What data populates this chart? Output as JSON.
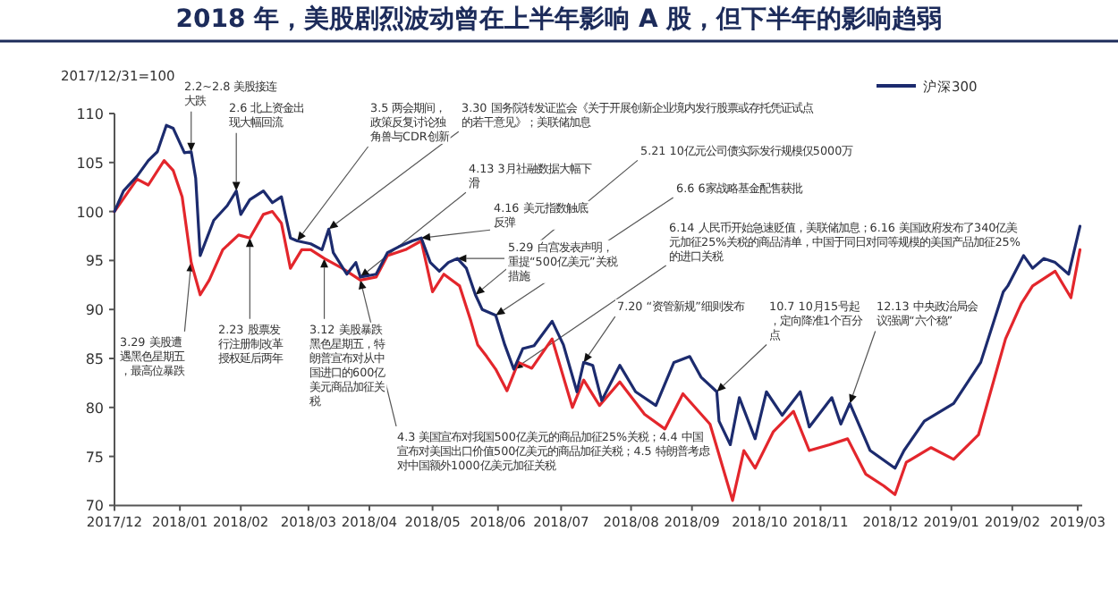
{
  "chart_data": {
    "type": "line",
    "title": "2018 年，美股剧烈波动曾在上半年影响 A 股，但下半年的影响趋弱",
    "ylabel": "2017/12/31=100",
    "xlim": [
      "2017-12-29",
      "2019-03-03"
    ],
    "xticks": [
      {
        "value": "2017-12-29",
        "label": "2017/12"
      },
      {
        "value": "2018-01-27",
        "label": "2018/01"
      },
      {
        "value": "2018-02-23",
        "label": "2018/02"
      },
      {
        "value": "2018-03-25",
        "label": "2018/03"
      },
      {
        "value": "2018-04-21",
        "label": "2018/04"
      },
      {
        "value": "2018-05-19",
        "label": "2018/05"
      },
      {
        "value": "2018-06-17",
        "label": "2018/06"
      },
      {
        "value": "2018-07-15",
        "label": "2018/07"
      },
      {
        "value": "2018-08-15",
        "label": "2018/08"
      },
      {
        "value": "2018-09-11",
        "label": "2018/09"
      },
      {
        "value": "2018-10-11",
        "label": "2018/10"
      },
      {
        "value": "2018-11-07",
        "label": "2018/11"
      },
      {
        "value": "2018-12-08",
        "label": "2018/12"
      },
      {
        "value": "2019-01-04",
        "label": "2019/01"
      },
      {
        "value": "2019-01-31",
        "label": "2019/02"
      },
      {
        "value": "2019-03-01",
        "label": "2019/03"
      }
    ],
    "ylim": [
      70,
      110
    ],
    "yticks": [
      70,
      75,
      80,
      85,
      90,
      95,
      100,
      105,
      110
    ],
    "grid": false,
    "legend": "top right",
    "line_style": "solid",
    "series": [
      {
        "color": "#e3262c",
        "x": [
          "2017-12-29",
          "2018-01-08",
          "2018-01-13",
          "2018-01-20",
          "2018-01-24",
          "2018-01-28",
          "2018-02-01",
          "2018-02-05",
          "2018-02-09",
          "2018-02-15",
          "2018-02-22",
          "2018-02-27",
          "2018-03-05",
          "2018-03-09",
          "2018-03-13",
          "2018-03-17",
          "2018-03-22",
          "2018-03-26",
          "2018-04-01",
          "2018-04-09",
          "2018-04-17",
          "2018-04-24",
          "2018-04-29",
          "2018-05-07",
          "2018-05-14",
          "2018-05-19",
          "2018-05-24",
          "2018-05-31",
          "2018-06-05",
          "2018-06-08",
          "2018-06-12",
          "2018-06-16",
          "2018-06-21",
          "2018-06-26",
          "2018-07-02",
          "2018-07-11",
          "2018-07-20",
          "2018-07-25",
          "2018-08-01",
          "2018-08-10",
          "2018-08-21",
          "2018-08-30",
          "2018-09-07",
          "2018-09-19",
          "2018-09-24",
          "2018-09-29",
          "2018-10-04",
          "2018-10-09",
          "2018-10-17",
          "2018-10-26",
          "2018-11-02",
          "2018-11-11",
          "2018-11-19",
          "2018-11-27",
          "2018-12-05",
          "2018-12-10",
          "2018-12-15",
          "2018-12-26",
          "2019-01-05",
          "2019-01-16",
          "2019-01-28",
          "2019-02-04",
          "2019-02-09",
          "2019-02-19",
          "2019-02-26",
          "2019-03-02"
        ],
        "values": [
          100,
          103.3,
          102.7,
          105.2,
          104.2,
          101.5,
          94.8,
          91.5,
          93,
          96.1,
          97.6,
          97.3,
          99.7,
          100,
          98.8,
          94.2,
          96.1,
          96.1,
          95.2,
          94.2,
          93,
          93.3,
          95.5,
          96.1,
          97,
          91.8,
          93.6,
          92.4,
          88.8,
          86.4,
          85.2,
          83.9,
          81.7,
          84.6,
          84,
          87,
          80,
          82.8,
          80.2,
          82.6,
          79.3,
          77.8,
          81.4,
          78.3,
          74.4,
          70.5,
          75.6,
          73.8,
          77.5,
          79.6,
          75.6,
          76.2,
          76.8,
          73.2,
          72,
          71.1,
          74.4,
          75.9,
          74.7,
          77.2,
          87,
          90.6,
          92.4,
          93.9,
          91.2,
          96.1
        ]
      },
      {
        "name": "沪深300",
        "color": "#1c2b6e",
        "x": [
          "2017-12-29",
          "2018-01-02",
          "2018-01-08",
          "2018-01-13",
          "2018-01-17",
          "2018-01-21",
          "2018-01-24",
          "2018-01-27",
          "2018-01-29",
          "2018-02-01",
          "2018-02-03",
          "2018-02-05",
          "2018-02-07",
          "2018-02-11",
          "2018-02-17",
          "2018-02-21",
          "2018-02-23",
          "2018-02-27",
          "2018-03-05",
          "2018-03-09",
          "2018-03-13",
          "2018-03-17",
          "2018-03-20",
          "2018-03-26",
          "2018-03-31",
          "2018-04-03",
          "2018-04-05",
          "2018-04-11",
          "2018-04-15",
          "2018-04-17",
          "2018-04-24",
          "2018-04-29",
          "2018-05-04",
          "2018-05-10",
          "2018-05-14",
          "2018-05-18",
          "2018-05-22",
          "2018-05-26",
          "2018-05-30",
          "2018-06-03",
          "2018-06-07",
          "2018-06-10",
          "2018-06-16",
          "2018-06-20",
          "2018-06-24",
          "2018-06-28",
          "2018-07-03",
          "2018-07-11",
          "2018-07-16",
          "2018-07-22",
          "2018-07-25",
          "2018-07-29",
          "2018-08-02",
          "2018-08-10",
          "2018-08-17",
          "2018-08-26",
          "2018-09-03",
          "2018-09-10",
          "2018-09-15",
          "2018-09-22",
          "2018-09-23",
          "2018-09-28",
          "2018-10-02",
          "2018-10-09",
          "2018-10-14",
          "2018-10-21",
          "2018-10-29",
          "2018-11-02",
          "2018-11-12",
          "2018-11-16",
          "2018-11-20",
          "2018-11-29",
          "2018-12-10",
          "2018-12-14",
          "2018-12-23",
          "2019-01-05",
          "2019-01-17",
          "2019-01-27",
          "2019-01-29",
          "2019-02-05",
          "2019-02-09",
          "2019-02-14",
          "2019-02-19",
          "2019-02-25",
          "2019-03-02"
        ],
        "values": [
          100,
          102.1,
          103.6,
          105.2,
          106.1,
          108.8,
          108.5,
          107,
          106,
          106.1,
          103.4,
          95.5,
          96.7,
          99.1,
          100.6,
          102.1,
          99.7,
          101.2,
          102.1,
          100.9,
          101.5,
          97.3,
          97,
          96.7,
          96.1,
          98.2,
          95.8,
          93.6,
          94.8,
          93.3,
          93.6,
          95.8,
          96.4,
          97,
          97.3,
          94.8,
          93.9,
          94.8,
          95.2,
          94.2,
          91.5,
          90,
          89.4,
          86.4,
          83.9,
          86,
          86.3,
          88.8,
          86.4,
          81.6,
          84.6,
          84.3,
          80.7,
          84.3,
          81.6,
          80.2,
          84.6,
          85.2,
          83.1,
          81.6,
          78.6,
          76.2,
          81,
          76.8,
          81.6,
          79.2,
          81.6,
          78,
          81,
          78.3,
          80.4,
          75.6,
          73.8,
          75.6,
          78.6,
          80.4,
          84.6,
          91.8,
          92.4,
          95.5,
          94.2,
          95.2,
          94.8,
          93.6,
          98.5
        ]
      }
    ],
    "annotations": [
      {
        "text": "2.2~2.8 美股接连大跌",
        "x": "2018-02-01",
        "y": 106.1
      },
      {
        "text": "2.6 北上资金出现大幅回流",
        "x": "2018-02-21",
        "y": 102.1
      },
      {
        "text": "3.5 两会期间，政策反复讨论独角兽与CDR创新",
        "x": "2018-03-20",
        "y": 97
      },
      {
        "text": "3.30 国务院转发证监会《关于开展创新企业境内发行股票或存托凭证试点的若干意见》；美联储加息",
        "x": "2018-04-03",
        "y": 98.2
      },
      {
        "text": "4.13 3月社融数据大幅下滑",
        "x": "2018-04-17",
        "y": 93.3
      },
      {
        "text": "4.16 美元指数触底反弹",
        "x": "2018-05-14",
        "y": 97.3
      },
      {
        "text": "5.29 白宫发表声明，重提“500亿美元”关税措施",
        "x": "2018-05-30",
        "y": 95.2
      },
      {
        "text": "5.21 10亿元公司债实际发行规模仅5000万",
        "x": "2018-06-07",
        "y": 91.5
      },
      {
        "text": "6.6 6家战略基金配售获批",
        "x": "2018-06-16",
        "y": 89.4
      },
      {
        "text": "6.14 人民币开始急速贬值，美联储加息；6.16 美国政府发布了340亿美元加征25%关税的商品清单，中国于同日对同等规模的美国产品加征25%的进口关税",
        "x": "2018-06-24",
        "y": 83.9
      },
      {
        "text": "7.20 “资管新规”细则发布",
        "x": "2018-07-25",
        "y": 84.6
      },
      {
        "text": "10.7 10月15号起，定向降准1个百分点",
        "x": "2018-09-22",
        "y": 81.6
      },
      {
        "text": "12.13 中央政治局会议强调“六个稳”",
        "x": "2018-11-20",
        "y": 80.4
      },
      {
        "text": "3.29 美股遭遇黑色星期五，最高位暴跌",
        "x": "2018-02-01",
        "y": 94.8
      },
      {
        "text": "2.23 股票发行注册制改革授权延后两年",
        "x": "2018-02-27",
        "y": 97.3
      },
      {
        "text": "3.12 美股暴跌黑色星期五，特朗普宣布对从中国进口的600亿美元商品加征关税",
        "x": "2018-04-01",
        "y": 95.2
      },
      {
        "text": "4.3 美国宣布对我国500亿美元的商品加征25%关税；4.4 中国宣布对美国出口价值500亿美元的商品加征关税；4.5 特朗普考虑对中国额外1000亿美元加征关税",
        "x": "2018-04-17",
        "y": 93
      }
    ]
  }
}
